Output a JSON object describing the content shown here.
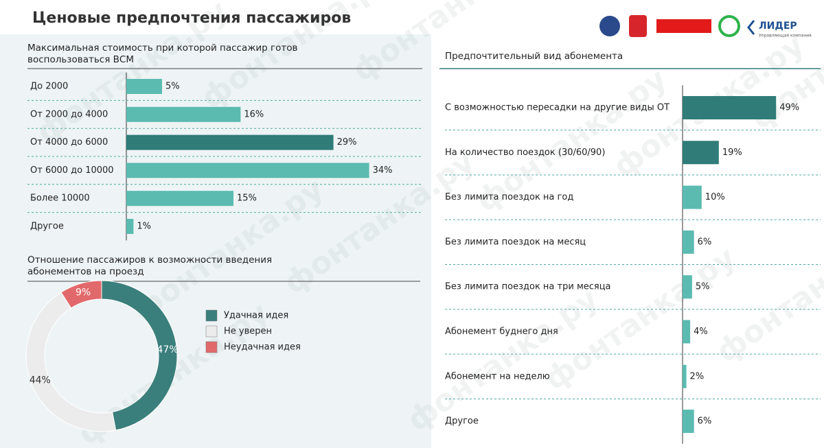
{
  "header": {
    "title": "Ценовые предпочтения пассажиров",
    "logo_text": "ЛИДЕР",
    "logo_subtext": "Управляющая компания"
  },
  "watermark": "фонтанка.ру",
  "chart_data": [
    {
      "type": "bar",
      "orientation": "horizontal",
      "title": "Максимальная стоимость при которой пассажир готов воспользоваться ВСМ",
      "categories": [
        "До 2000",
        "От 2000 до 4000",
        "От 4000 до 6000",
        "От 6000 до 10000",
        "Более 10000",
        "Другое"
      ],
      "values": [
        5,
        16,
        29,
        34,
        15,
        1
      ],
      "value_labels": [
        "5%",
        "16%",
        "29%",
        "34%",
        "15%",
        "1%"
      ],
      "colors": [
        "#5bbbb0",
        "#5bbbb0",
        "#2f7c78",
        "#5bbbb0",
        "#5bbbb0",
        "#5bbbb0"
      ]
    },
    {
      "type": "donut",
      "title": "Отношение пассажиров к возможности введения абонементов на проезд",
      "categories": [
        "Удачная идея",
        "Не уверен",
        "Неудачная идея"
      ],
      "values": [
        47,
        44,
        9
      ],
      "value_labels": [
        "47%",
        "44%",
        "9%"
      ],
      "colors": [
        "#3a7f7c",
        "#ececec",
        "#e2696b"
      ]
    },
    {
      "type": "bar",
      "orientation": "horizontal",
      "title": "Предпочтительный вид абонемента",
      "categories": [
        "С возможностью пересадки на другие виды ОТ",
        "На количество поездок (30/60/90)",
        "Без лимита поездок на год",
        "Без лимита поездок на месяц",
        "Без лимита поездок на три месяца",
        "Абонемент буднего дня",
        "Абонемент на неделю",
        "Другое"
      ],
      "values": [
        49,
        19,
        10,
        6,
        5,
        4,
        2,
        6
      ],
      "value_labels": [
        "49%",
        "19%",
        "10%",
        "6%",
        "5%",
        "4%",
        "2%",
        "6%"
      ],
      "colors": [
        "#2f7c78",
        "#2f7c78",
        "#5bbbb0",
        "#5bbbb0",
        "#5bbbb0",
        "#5bbbb0",
        "#5bbbb0",
        "#5bbbb0"
      ]
    }
  ]
}
